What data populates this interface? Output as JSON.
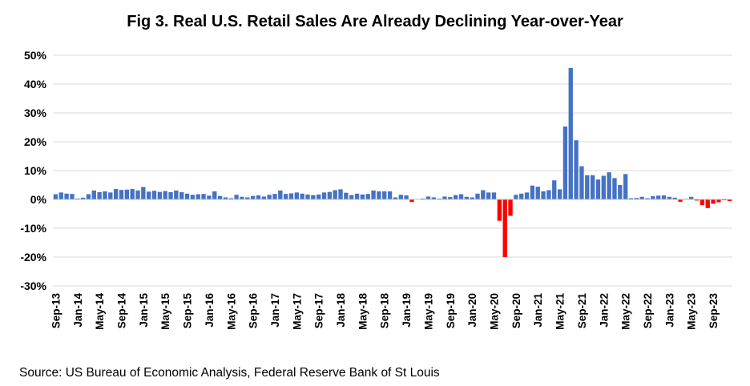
{
  "chart_data": {
    "type": "bar",
    "title": "Fig 3. Real U.S. Retail Sales Are Already Declining Year-over-Year",
    "xlabel": "",
    "ylabel": "",
    "ylim": [
      -30,
      50
    ],
    "yticks": [
      -30,
      -20,
      -10,
      0,
      10,
      20,
      30,
      40,
      50
    ],
    "ytick_labels": [
      "-30%",
      "-20%",
      "-10%",
      "0%",
      "10%",
      "20%",
      "30%",
      "40%",
      "50%"
    ],
    "xtick_labels": [
      "Sep-13",
      "Jan-14",
      "May-14",
      "Sep-14",
      "Jan-15",
      "May-15",
      "Sep-15",
      "Jan-16",
      "May-16",
      "Sep-16",
      "Jan-17",
      "May-17",
      "Sep-17",
      "Jan-18",
      "May-18",
      "Sep-18",
      "Jan-19",
      "May-19",
      "Sep-19",
      "Jan-20",
      "May-20",
      "Sep-20",
      "Jan-21",
      "May-21",
      "Sep-21",
      "Jan-22",
      "May-22",
      "Sep-22",
      "Jan-23",
      "May-23",
      "Sep-23"
    ],
    "grid": "horizontal",
    "colors": {
      "positive": "#4472C4",
      "negative": "#FF0000"
    },
    "series": [
      {
        "values": [
          1.8,
          2.4,
          2.0,
          1.9,
          0.3,
          0.6,
          1.8,
          3.1,
          2.5,
          2.8,
          2.4,
          3.6,
          3.3,
          3.4,
          3.6,
          3.1,
          4.3,
          2.7,
          3.0,
          2.6,
          2.9,
          2.5,
          3.1,
          2.5,
          2.0,
          1.6,
          1.8,
          1.9,
          1.3,
          2.8,
          1.2,
          0.7,
          0.4,
          1.6,
          0.9,
          0.7,
          1.2,
          1.4,
          1.0,
          1.6,
          1.9,
          3.1,
          1.9,
          2.1,
          2.4,
          2.0,
          1.7,
          1.5,
          1.7,
          2.4,
          2.6,
          3.2,
          3.5,
          2.3,
          1.5,
          2.0,
          1.7,
          1.9,
          3.1,
          2.8,
          2.8,
          2.8,
          0.7,
          1.6,
          1.4,
          -0.9,
          0.1,
          0.3,
          1.0,
          0.7,
          0.3,
          1.0,
          0.8,
          1.5,
          1.8,
          0.9,
          0.7,
          2.0,
          3.2,
          2.4,
          2.4,
          -7.4,
          -20.0,
          -5.7,
          1.6,
          2.0,
          2.4,
          4.8,
          4.4,
          2.8,
          3.2,
          6.6,
          3.5,
          25.3,
          45.6,
          20.5,
          11.5,
          8.4,
          8.4,
          6.9,
          8.2,
          9.4,
          7.4,
          5.0,
          8.8,
          0.4,
          0.5,
          0.9,
          0.4,
          1.1,
          1.3,
          1.4,
          0.9,
          0.6,
          -0.8,
          0.2,
          0.9,
          -0.4,
          -2.0,
          -3.0,
          -1.5,
          -1.0,
          -0.3,
          -0.6
        ]
      }
    ]
  },
  "source_text": "Source: US Bureau of Economic Analysis, Federal Reserve Bank of St Louis"
}
